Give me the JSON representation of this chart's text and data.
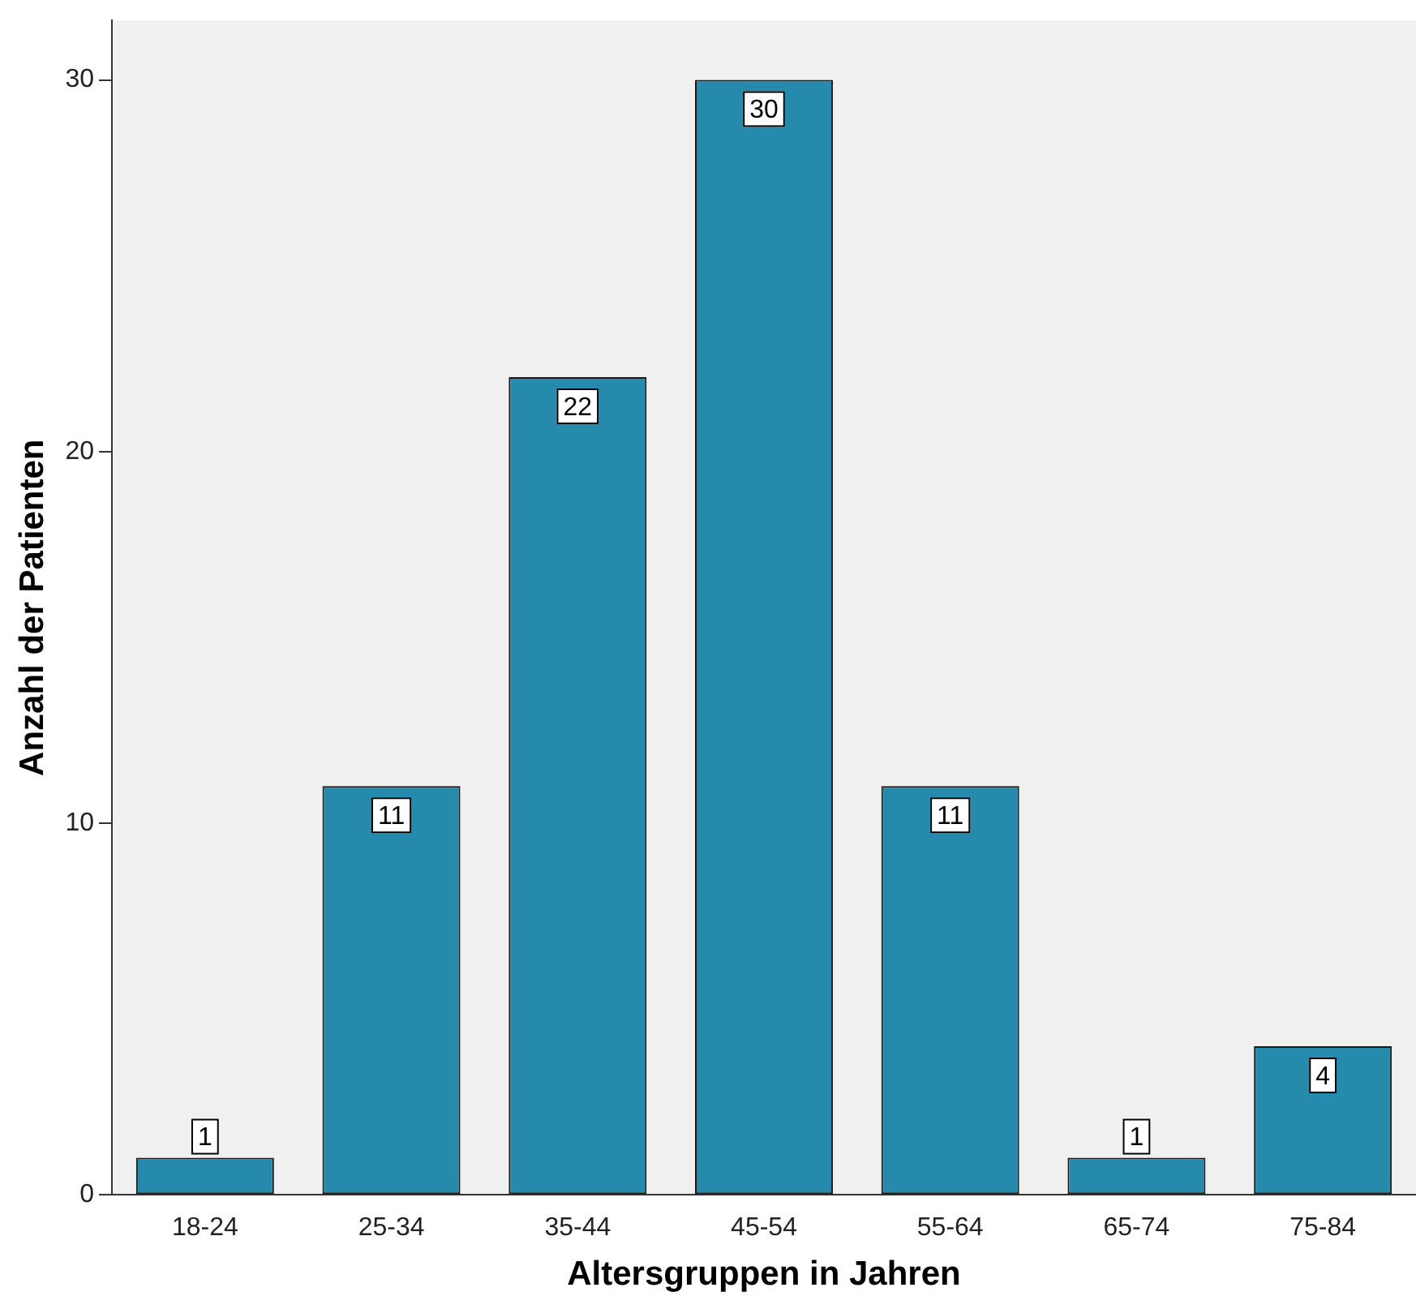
{
  "chart_data": {
    "type": "bar",
    "categories": [
      "18-24",
      "25-34",
      "35-44",
      "45-54",
      "55-64",
      "65-74",
      "75-84"
    ],
    "values": [
      1,
      11,
      22,
      30,
      11,
      1,
      4
    ],
    "color": "#268aac",
    "xlabel": "Altersgruppen in Jahren",
    "ylabel": "Anzahl der Patienten",
    "ylim": [
      0,
      31.6
    ],
    "yticks": [
      0,
      10,
      20,
      30
    ],
    "grid": false,
    "legend": false,
    "data_labels": true
  }
}
